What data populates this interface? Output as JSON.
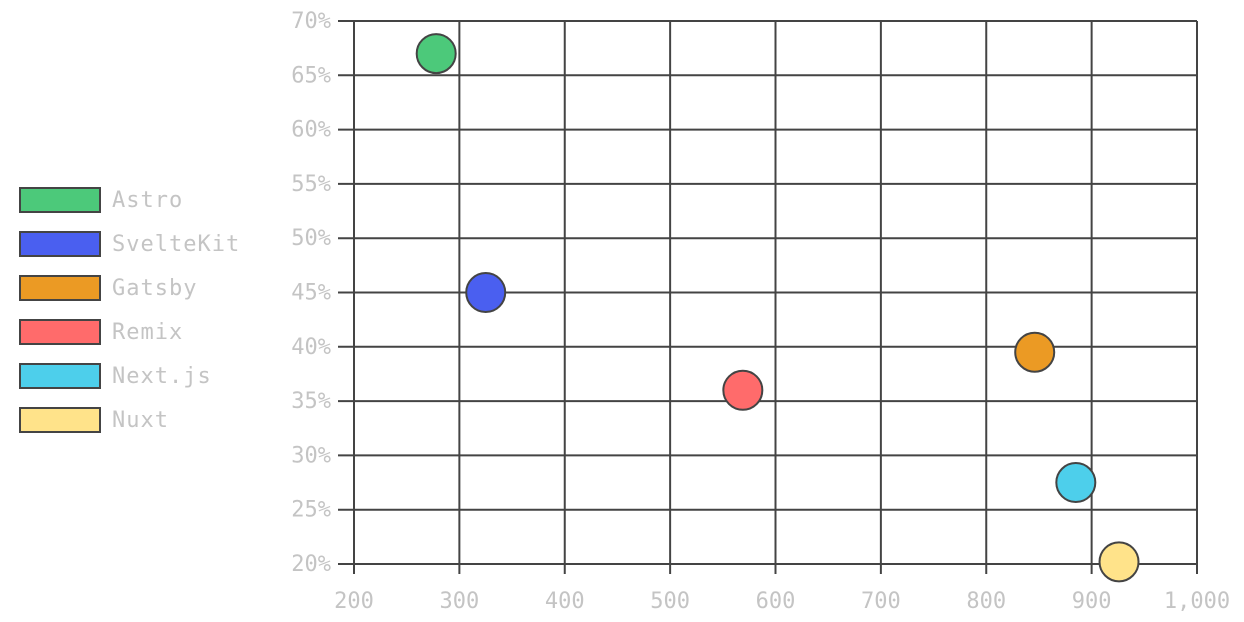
{
  "chart_data": {
    "type": "scatter",
    "title": "",
    "xlabel": "",
    "ylabel": "",
    "xlim": [
      200,
      1000
    ],
    "ylim": [
      20,
      70
    ],
    "x_ticks": [
      "200",
      "300",
      "400",
      "500",
      "600",
      "700",
      "800",
      "900",
      "1,000"
    ],
    "y_ticks": [
      "20%",
      "25%",
      "30%",
      "35%",
      "40%",
      "45%",
      "50%",
      "55%",
      "60%",
      "65%",
      "70%"
    ],
    "grid": true,
    "legend_position": "left",
    "series": [
      {
        "name": "Astro",
        "color": "#4cc97a",
        "x": 278,
        "y": 67
      },
      {
        "name": "SvelteKit",
        "color": "#4a5ff0",
        "x": 325,
        "y": 45
      },
      {
        "name": "Gatsby",
        "color": "#eb9a24",
        "x": 846,
        "y": 39.5
      },
      {
        "name": "Remix",
        "color": "#ff6b6b",
        "x": 569,
        "y": 36
      },
      {
        "name": "Next.js",
        "color": "#4dcfeb",
        "x": 885,
        "y": 27.5
      },
      {
        "name": "Nuxt",
        "color": "#ffe38a",
        "x": 926,
        "y": 20.2
      }
    ]
  }
}
